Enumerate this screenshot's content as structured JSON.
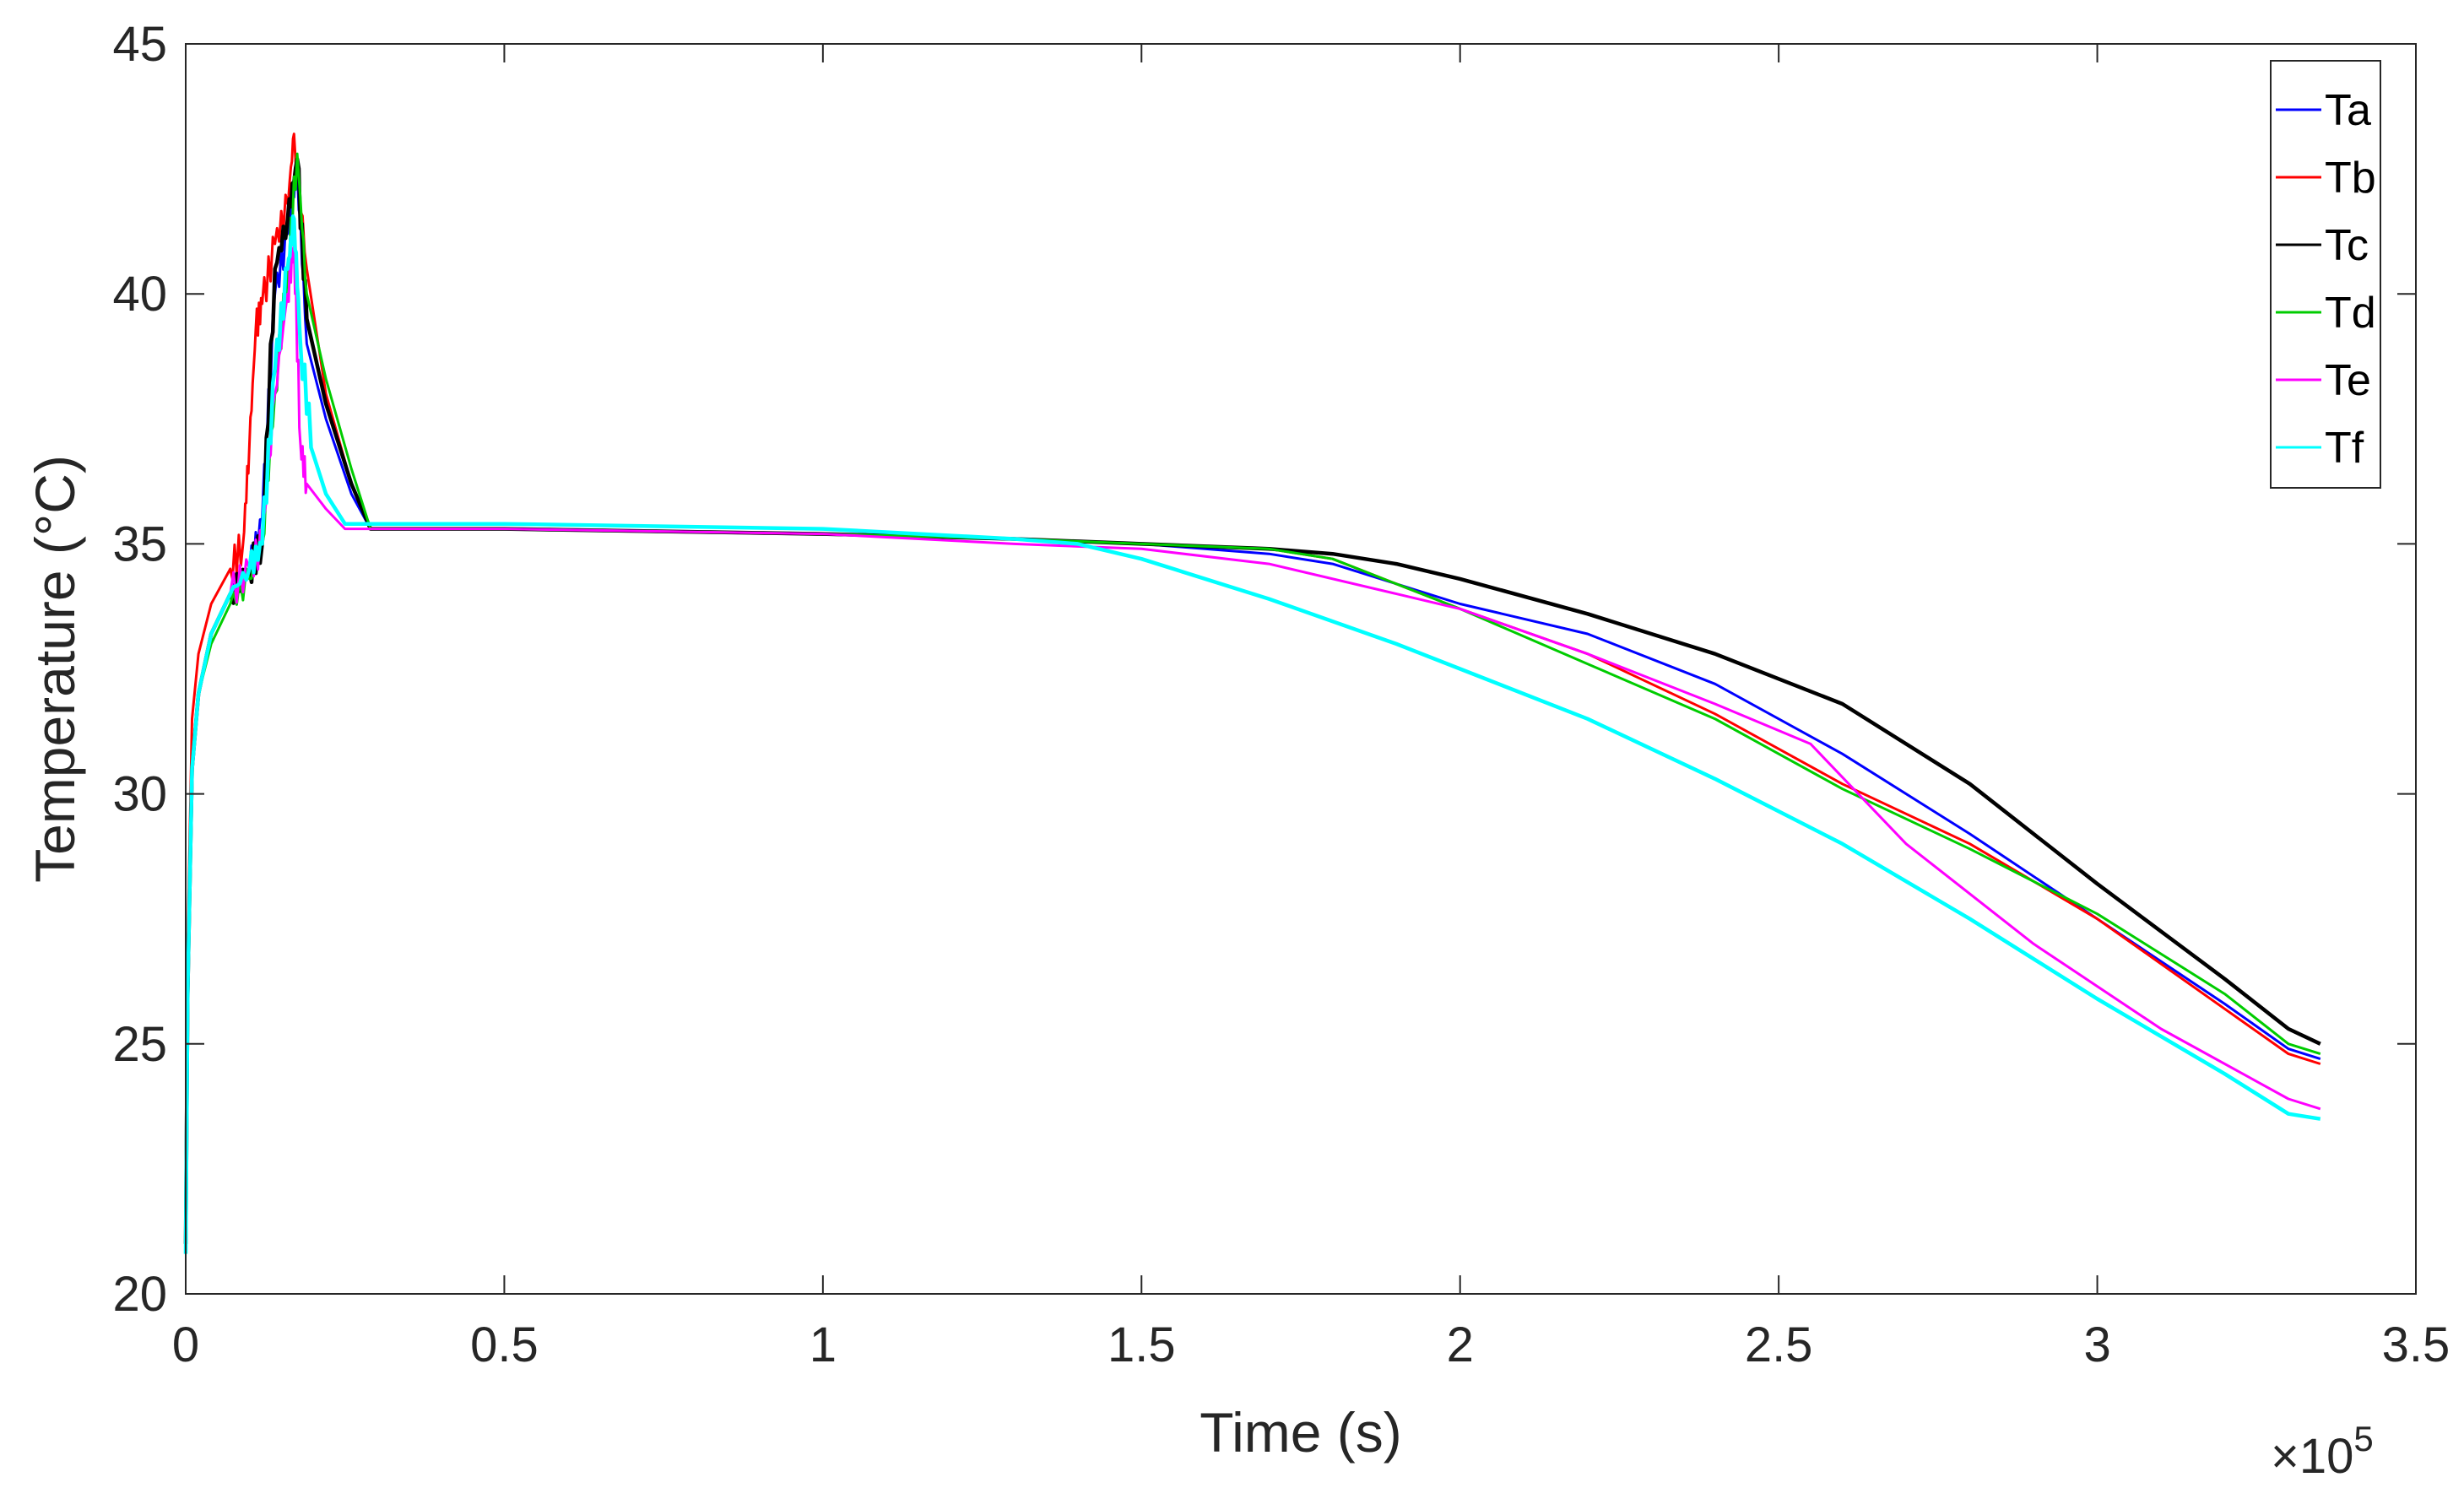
{
  "chart_data": {
    "type": "line",
    "xlabel": "Time (s)",
    "ylabel": "Temperature (°C)",
    "x_exponent_label": "×10",
    "x_exponent_power": "5",
    "xlim": [
      0,
      3.5
    ],
    "ylim": [
      20,
      45
    ],
    "x_ticks": [
      "0",
      "0.5",
      "1",
      "1.5",
      "2",
      "2.5",
      "3",
      "3.5"
    ],
    "y_ticks": [
      "20",
      "25",
      "30",
      "35",
      "40",
      "45"
    ],
    "grid": false,
    "legend_position": "top-right",
    "series": [
      {
        "name": "Ta",
        "color": "#0000ff",
        "x": [
          0,
          0.003,
          0.01,
          0.02,
          0.04,
          0.07,
          0.1,
          0.12,
          0.14,
          0.16,
          0.175,
          0.19,
          0.22,
          0.26,
          0.29,
          0.5,
          1.0,
          1.3,
          1.5,
          1.7,
          1.8,
          1.9,
          2.0,
          2.2,
          2.4,
          2.6,
          2.8,
          3.0,
          3.2,
          3.3,
          3.35
        ],
        "y": [
          21.0,
          26.0,
          30.5,
          32.0,
          33.2,
          34.0,
          34.5,
          35.5,
          40.0,
          41.2,
          42.5,
          39.0,
          37.5,
          36.0,
          35.3,
          35.3,
          35.2,
          35.1,
          35.0,
          34.8,
          34.6,
          34.2,
          33.8,
          33.2,
          32.2,
          30.8,
          29.2,
          27.5,
          25.8,
          24.9,
          24.7
        ]
      },
      {
        "name": "Tb",
        "color": "#ff0000",
        "x": [
          0,
          0.003,
          0.01,
          0.02,
          0.04,
          0.07,
          0.09,
          0.1,
          0.11,
          0.12,
          0.14,
          0.16,
          0.17,
          0.19,
          0.22,
          0.26,
          0.29,
          0.5,
          1.0,
          1.3,
          1.5,
          1.7,
          1.8,
          1.9,
          2.0,
          2.2,
          2.4,
          2.6,
          2.8,
          3.0,
          3.2,
          3.3,
          3.35
        ],
        "y": [
          21.0,
          27.0,
          31.5,
          32.8,
          33.8,
          34.5,
          35.0,
          37.0,
          39.3,
          39.8,
          41.0,
          41.8,
          43.2,
          40.5,
          38.0,
          36.2,
          35.3,
          35.3,
          35.2,
          35.1,
          35.0,
          34.9,
          34.7,
          34.2,
          33.7,
          32.8,
          31.6,
          30.2,
          29.0,
          27.5,
          25.7,
          24.8,
          24.6
        ]
      },
      {
        "name": "Tc",
        "color": "#000000",
        "x": [
          0,
          0.003,
          0.01,
          0.02,
          0.04,
          0.07,
          0.1,
          0.12,
          0.14,
          0.16,
          0.175,
          0.19,
          0.22,
          0.26,
          0.29,
          0.5,
          1.0,
          1.3,
          1.5,
          1.7,
          1.8,
          1.9,
          2.0,
          2.2,
          2.4,
          2.6,
          2.8,
          3.0,
          3.2,
          3.3,
          3.35
        ],
        "y": [
          21.0,
          26.0,
          30.5,
          32.0,
          33.2,
          34.0,
          34.5,
          35.0,
          40.5,
          41.5,
          42.7,
          39.5,
          37.8,
          36.2,
          35.3,
          35.3,
          35.2,
          35.1,
          35.0,
          34.9,
          34.8,
          34.6,
          34.3,
          33.6,
          32.8,
          31.8,
          30.2,
          28.2,
          26.3,
          25.3,
          25.0
        ]
      },
      {
        "name": "Td",
        "color": "#00cc00",
        "x": [
          0,
          0.003,
          0.01,
          0.02,
          0.04,
          0.07,
          0.1,
          0.12,
          0.14,
          0.16,
          0.175,
          0.19,
          0.22,
          0.26,
          0.29,
          0.5,
          1.0,
          1.3,
          1.5,
          1.7,
          1.8,
          1.9,
          2.0,
          2.2,
          2.4,
          2.6,
          2.8,
          3.0,
          3.2,
          3.3,
          3.35
        ],
        "y": [
          21.0,
          26.0,
          30.5,
          32.0,
          33.0,
          33.8,
          34.3,
          35.0,
          38.0,
          40.5,
          42.8,
          40.0,
          38.3,
          36.5,
          35.3,
          35.3,
          35.2,
          35.1,
          35.0,
          34.9,
          34.7,
          34.2,
          33.7,
          32.6,
          31.5,
          30.1,
          28.9,
          27.6,
          26.0,
          25.0,
          24.8
        ]
      },
      {
        "name": "Te",
        "color": "#ff00ff",
        "x": [
          0,
          0.003,
          0.01,
          0.02,
          0.04,
          0.07,
          0.1,
          0.12,
          0.14,
          0.16,
          0.17,
          0.18,
          0.19,
          0.22,
          0.25,
          0.3,
          0.5,
          1.0,
          1.3,
          1.5,
          1.7,
          1.9,
          2.0,
          2.2,
          2.4,
          2.55,
          2.7,
          2.9,
          3.1,
          3.3,
          3.35
        ],
        "y": [
          21.0,
          26.0,
          30.5,
          32.0,
          33.2,
          34.0,
          34.5,
          35.0,
          38.0,
          40.0,
          41.0,
          37.0,
          36.2,
          35.7,
          35.3,
          35.3,
          35.3,
          35.2,
          35.0,
          34.9,
          34.6,
          34.0,
          33.7,
          32.8,
          31.8,
          31.0,
          29.0,
          27.0,
          25.3,
          23.9,
          23.7
        ]
      },
      {
        "name": "Tf",
        "color": "#00ffff",
        "x": [
          0,
          0.003,
          0.01,
          0.02,
          0.04,
          0.07,
          0.1,
          0.12,
          0.14,
          0.16,
          0.17,
          0.18,
          0.2,
          0.22,
          0.25,
          0.3,
          0.5,
          1.0,
          1.3,
          1.4,
          1.5,
          1.7,
          1.9,
          2.0,
          2.2,
          2.4,
          2.6,
          2.8,
          3.0,
          3.2,
          3.3,
          3.35
        ],
        "y": [
          20.8,
          26.0,
          30.5,
          32.0,
          33.2,
          34.0,
          34.5,
          35.0,
          38.5,
          40.5,
          41.5,
          39.0,
          36.8,
          36.0,
          35.4,
          35.4,
          35.4,
          35.3,
          35.1,
          35.0,
          34.7,
          33.9,
          33.0,
          32.5,
          31.5,
          30.3,
          29.0,
          27.5,
          25.9,
          24.4,
          23.6,
          23.5
        ]
      }
    ]
  }
}
